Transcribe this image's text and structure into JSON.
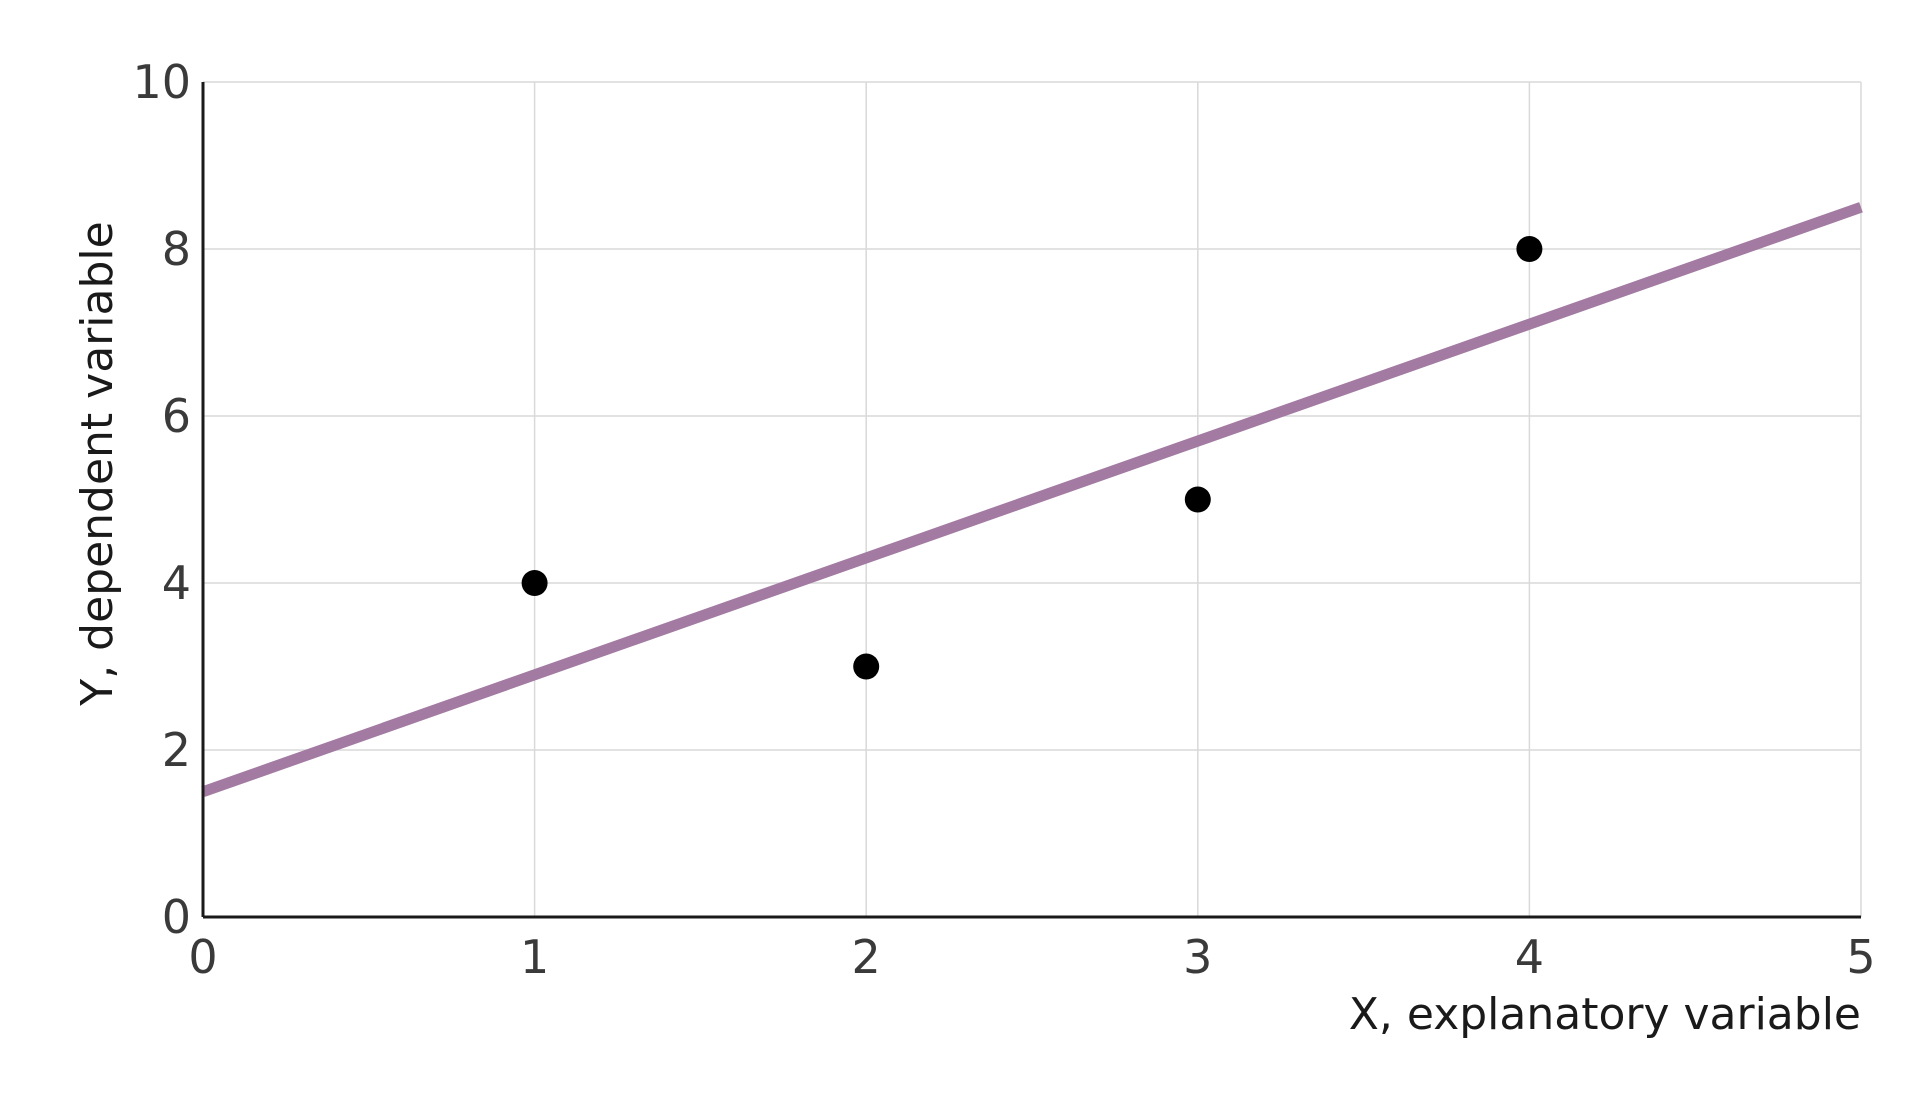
{
  "chart_data": {
    "type": "scatter",
    "xlabel": "X, explanatory variable",
    "ylabel": "Y, dependent variable",
    "xlim": [
      0,
      5
    ],
    "ylim": [
      0,
      10
    ],
    "x_ticks": [
      "0",
      "1",
      "2",
      "3",
      "4",
      "5"
    ],
    "y_ticks": [
      "0",
      "2",
      "4",
      "6",
      "8",
      "10"
    ],
    "grid": true,
    "legend": "none",
    "series": [
      {
        "type": "scatter",
        "x": [
          1,
          2,
          3,
          4
        ],
        "y": [
          4,
          3,
          5,
          8
        ],
        "color": "#000000"
      },
      {
        "type": "line",
        "x": [
          0,
          5
        ],
        "y": [
          1.5,
          8.5
        ],
        "color": "#a27aa2"
      }
    ]
  }
}
